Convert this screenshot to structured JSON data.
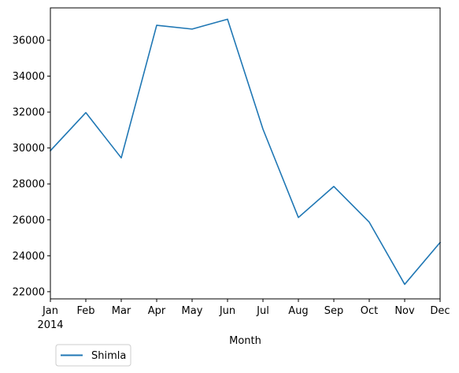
{
  "chart_data": {
    "type": "line",
    "title": "",
    "xlabel": "Month",
    "ylabel": "",
    "x": [
      "2014-01",
      "2014-02",
      "2014-03",
      "2014-04",
      "2014-05",
      "2014-06",
      "2014-07",
      "2014-08",
      "2014-09",
      "2014-10",
      "2014-11",
      "2014-12"
    ],
    "x_tick_labels": [
      "Jan",
      "Feb",
      "Mar",
      "Apr",
      "May",
      "Jun",
      "Jul",
      "Aug",
      "Sep",
      "Oct",
      "Nov",
      "Dec"
    ],
    "x_tick_year_label": "2014",
    "y_ticks": [
      22000,
      24000,
      26000,
      28000,
      30000,
      32000,
      34000,
      36000
    ],
    "ylim": [
      21600,
      37800
    ],
    "grid": false,
    "legend_position": "bottom-left",
    "series": [
      {
        "name": "Shimla",
        "color": "#1f77b4",
        "values": [
          29850,
          31970,
          29450,
          36830,
          36620,
          37170,
          31050,
          26130,
          27860,
          25870,
          22410,
          24740
        ]
      }
    ]
  }
}
